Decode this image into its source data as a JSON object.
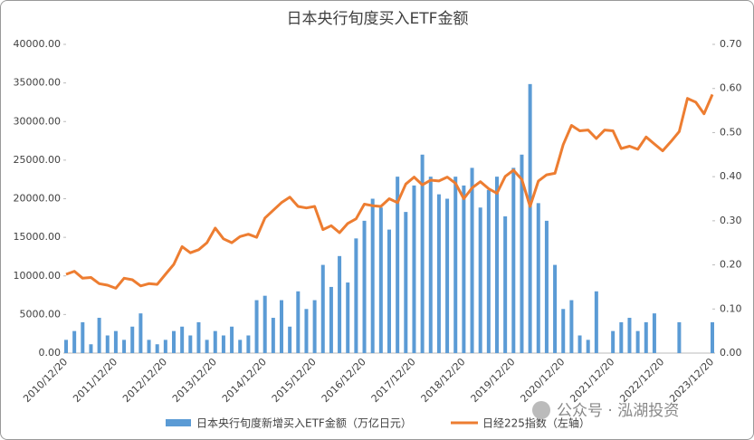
{
  "chart_data": {
    "type": "bar-line",
    "title": "日本央行旬度买入ETF金额",
    "categories": [
      "2010/12/20",
      null,
      null,
      null,
      null,
      null,
      "2011/12/20",
      null,
      null,
      null,
      null,
      null,
      "2012/12/20",
      null,
      null,
      null,
      null,
      null,
      "2013/12/20",
      null,
      null,
      null,
      null,
      null,
      "2014/12/20",
      null,
      null,
      null,
      null,
      null,
      "2015/12/20",
      null,
      null,
      null,
      null,
      null,
      "2016/12/20",
      null,
      null,
      null,
      null,
      null,
      "2017/12/20",
      null,
      null,
      null,
      null,
      null,
      "2018/12/20",
      null,
      null,
      null,
      null,
      null,
      "2019/12/20",
      null,
      null,
      null,
      null,
      null,
      "2020/12/20",
      null,
      null,
      null,
      null,
      null,
      "2021/12/20",
      null,
      null,
      null,
      null,
      null,
      "2022/12/20",
      null,
      null,
      null,
      null,
      null,
      "2023/12/20"
    ],
    "series": [
      {
        "name": "日本央行旬度新增买入ETF金额（万亿日元）",
        "type": "bar",
        "axis": "y2",
        "color": "#5b9bd5",
        "values": [
          0.03,
          0.05,
          0.07,
          0.02,
          0.08,
          0.04,
          0.05,
          0.03,
          0.06,
          0.09,
          0.03,
          0.02,
          0.03,
          0.05,
          0.06,
          0.04,
          0.07,
          0.03,
          0.05,
          0.04,
          0.06,
          0.03,
          0.04,
          0.12,
          0.13,
          0.08,
          0.12,
          0.06,
          0.14,
          0.1,
          0.12,
          0.2,
          0.15,
          0.22,
          0.16,
          0.26,
          0.3,
          0.35,
          0.33,
          0.28,
          0.4,
          0.32,
          0.38,
          0.45,
          0.4,
          0.36,
          0.35,
          0.4,
          0.38,
          0.42,
          0.33,
          0.37,
          0.4,
          0.31,
          0.42,
          0.45,
          0.61,
          0.34,
          0.3,
          0.2,
          0.1,
          0.12,
          0.04,
          0.03,
          0.14,
          0,
          0.05,
          0.07,
          0.08,
          0.05,
          0.07,
          0.09,
          0,
          0,
          0.07,
          0,
          0,
          0,
          0.07
        ]
      },
      {
        "name": "日经225指数（左轴）",
        "type": "line",
        "axis": "y",
        "color": "#ed7d31",
        "values": [
          10200,
          10600,
          9700,
          9800,
          9000,
          8800,
          8400,
          9700,
          9500,
          8700,
          9000,
          8900,
          10200,
          11500,
          13800,
          13000,
          13400,
          14300,
          16200,
          14800,
          14300,
          15100,
          15400,
          15000,
          17500,
          18500,
          19500,
          20200,
          19000,
          18800,
          19000,
          16000,
          16500,
          15600,
          16800,
          17400,
          19300,
          19100,
          19000,
          20000,
          19500,
          21900,
          22800,
          21800,
          22400,
          22300,
          22800,
          22000,
          20000,
          21400,
          22200,
          21300,
          20700,
          22900,
          23700,
          22500,
          19000,
          22300,
          23100,
          23300,
          27000,
          29500,
          28800,
          28900,
          27800,
          28900,
          28800,
          26500,
          26800,
          26400,
          28000,
          27100,
          26200,
          27400,
          28700,
          33000,
          32500,
          31000,
          33500
        ]
      }
    ],
    "ylim": [
      0,
      40000
    ],
    "yticks": [
      {
        "value": 0,
        "label": "0.00"
      },
      {
        "value": 5000,
        "label": "5000.00"
      },
      {
        "value": 10000,
        "label": "10000.00"
      },
      {
        "value": 15000,
        "label": "15000.00"
      },
      {
        "value": 20000,
        "label": "20000.00"
      },
      {
        "value": 25000,
        "label": "25000.00"
      },
      {
        "value": 30000,
        "label": "30000.00"
      },
      {
        "value": 35000,
        "label": "35000.00"
      },
      {
        "value": 40000,
        "label": "40000.00"
      }
    ],
    "y2lim": [
      0,
      0.7
    ],
    "y2ticks": [
      {
        "value": 0,
        "label": "0.00"
      },
      {
        "value": 0.1,
        "label": "0.10"
      },
      {
        "value": 0.2,
        "label": "0.20"
      },
      {
        "value": 0.3,
        "label": "0.30"
      },
      {
        "value": 0.4,
        "label": "0.40"
      },
      {
        "value": 0.5,
        "label": "0.50"
      },
      {
        "value": 0.6,
        "label": "0.60"
      },
      {
        "value": 0.7,
        "label": "0.70"
      }
    ],
    "grid": false
  },
  "watermark": "公众号 · 泓湖投资"
}
